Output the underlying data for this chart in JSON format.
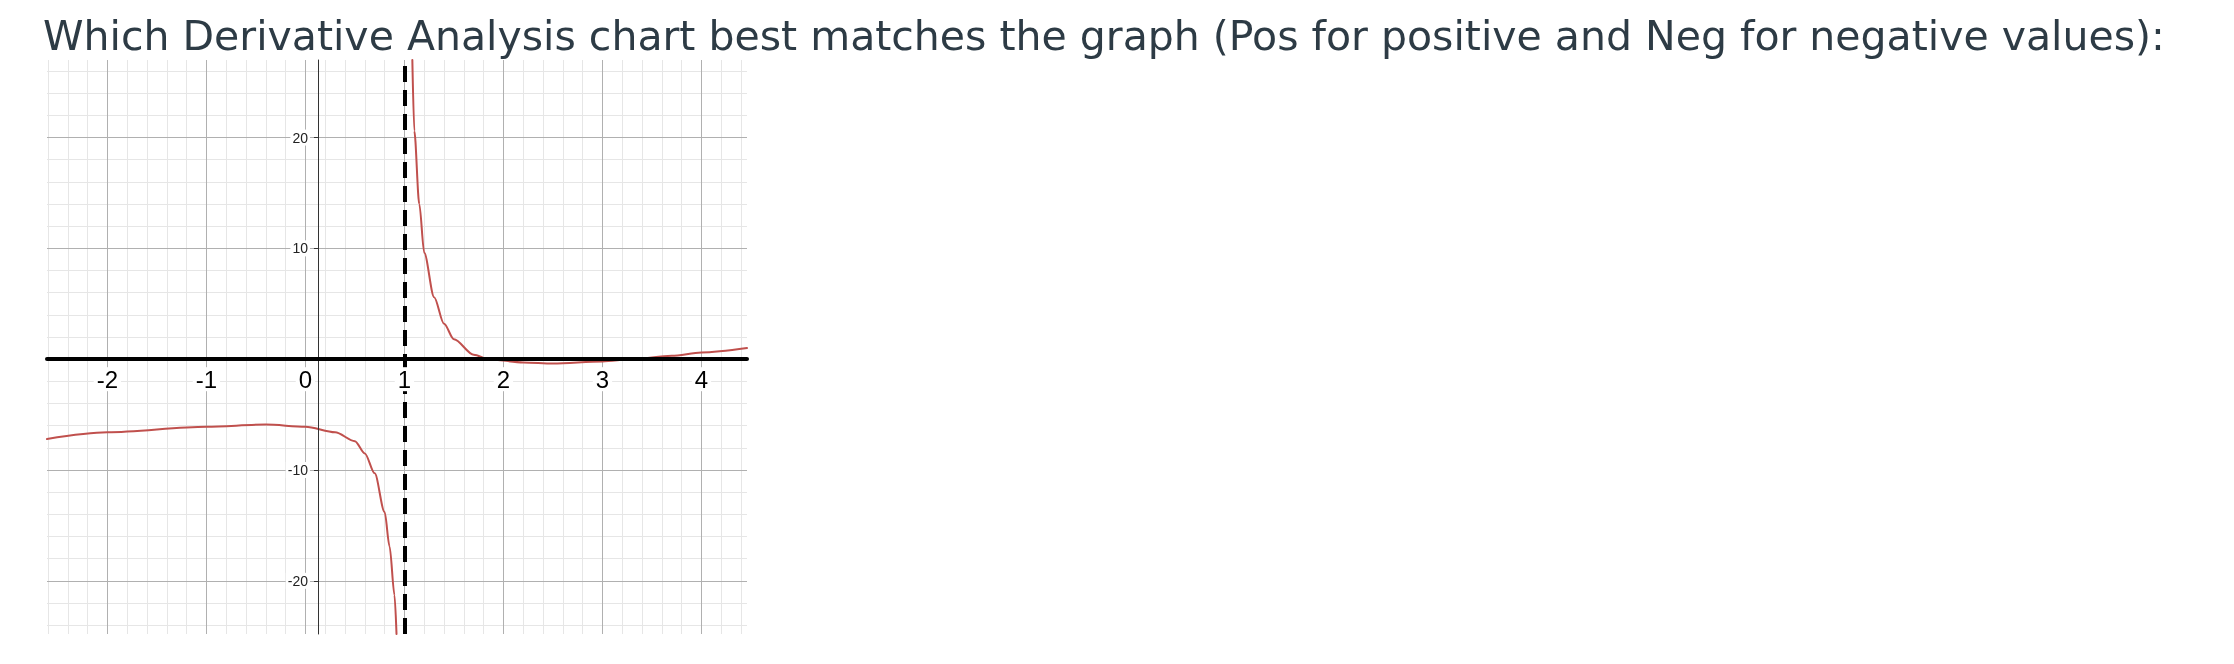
{
  "chart_data": {
    "type": "line",
    "title": "Which Derivative Analysis chart best matches the graph (Pos for positive and Neg for negative values):",
    "series": [
      {
        "color": "#c0504d",
        "x": [
          -2.61,
          -2,
          -1,
          -0.4,
          0,
          0.3,
          0.5,
          0.6,
          0.7,
          0.8,
          0.85,
          0.9,
          0.92,
          1,
          1.08,
          1.1,
          1.15,
          1.2,
          1.3,
          1.4,
          1.5,
          1.7,
          1.85,
          2.2,
          2.5,
          3,
          3.3,
          3.7,
          4,
          4.46
        ],
        "values": [
          -7.2,
          -6.6,
          -6.1,
          -5.9,
          -6.1,
          -6.6,
          -7.4,
          -8.5,
          -10.3,
          -13.8,
          -16.9,
          -21.3,
          -24.8,
          null,
          27,
          20.6,
          14,
          9.6,
          5.6,
          3.2,
          1.8,
          0.4,
          0,
          -0.3,
          -0.4,
          -0.2,
          0,
          0.3,
          0.6,
          1
        ]
      }
    ],
    "xlim": [
      -2.61,
      4.46
    ],
    "ylim": [
      -24.8,
      27
    ],
    "xticks": [
      {
        "value": -2,
        "label": "-2"
      },
      {
        "value": -1,
        "label": "-1"
      },
      0,
      1,
      2,
      3,
      4
    ],
    "yticks": [
      -20,
      -10,
      10,
      20
    ],
    "grid": true,
    "marker": "none",
    "line_style": "solid",
    "ref_lines": [
      {
        "axis": "x",
        "value": 1,
        "label": null,
        "color": "#000000",
        "line_style": "dashed"
      }
    ]
  }
}
